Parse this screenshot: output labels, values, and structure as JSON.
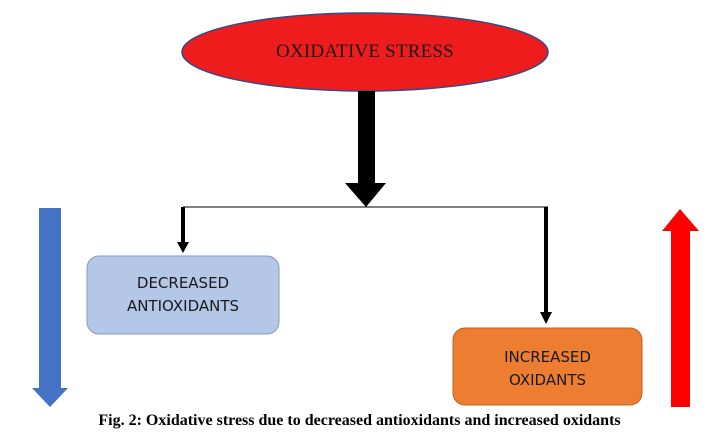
{
  "title": "OXIDATIVE STRESS",
  "left_box": {
    "line1": "DECREASED",
    "line2": "ANTIOXIDANTS"
  },
  "right_box": {
    "line1": "INCREASED",
    "line2": "OXIDANTS"
  },
  "caption": "Fig. 2: Oxidative stress due to decreased antioxidants and increased oxidants",
  "colors": {
    "ellipse_fill": "#ee1c1c",
    "ellipse_stroke": "#2e4c8a",
    "left_box_fill": "#b4c7e7",
    "right_box_fill": "#ed7d31",
    "down_arrow": "#4472c4",
    "up_arrow": "#ff0000",
    "connector": "#000000"
  }
}
